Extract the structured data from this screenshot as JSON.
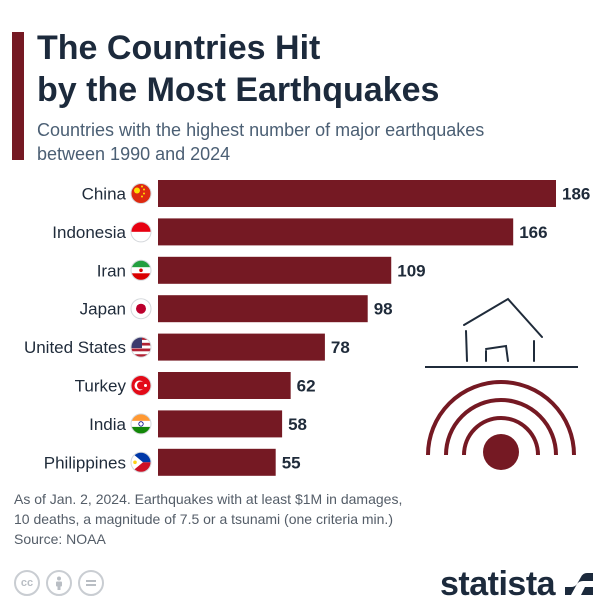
{
  "header": {
    "title_line1": "The Countries Hit",
    "title_line2": "by the Most Earthquakes",
    "subtitle_line1": "Countries with the highest number of major earthquakes",
    "subtitle_line2": "between 1990 and 2024"
  },
  "chart_data": {
    "type": "bar",
    "orientation": "horizontal",
    "title": "The Countries Hit by the Most Earthquakes",
    "subtitle": "Countries with the highest number of major earthquakes between 1990 and 2024",
    "categories": [
      "China",
      "Indonesia",
      "Iran",
      "Japan",
      "United States",
      "Turkey",
      "India",
      "Philippines"
    ],
    "values": [
      186,
      166,
      109,
      98,
      78,
      62,
      58,
      55
    ],
    "flags": [
      "china-flag-icon",
      "indonesia-flag-icon",
      "iran-flag-icon",
      "japan-flag-icon",
      "usa-flag-icon",
      "turkey-flag-icon",
      "india-flag-icon",
      "philippines-flag-icon"
    ],
    "xlim": [
      0,
      186
    ],
    "grid": false,
    "bar_color": "#751923",
    "data_labels": true
  },
  "illustration": {
    "name": "house-on-seismic-waves-icon",
    "color": "#751923"
  },
  "footer": {
    "note_line1": "As of Jan. 2, 2024. Earthquakes with at least $1M in damages,",
    "note_line2": "10 deaths, a magnitude of 7.5 or a tsunami (one criteria min.)",
    "source": "Source: NOAA",
    "license_icons": [
      "creative-commons-icon",
      "attribution-icon",
      "no-derivatives-icon"
    ],
    "brand": "statista"
  },
  "colors": {
    "accent": "#751923",
    "title": "#1c2a3c",
    "subtitle": "#4b5f74",
    "footnote": "#545d68"
  }
}
